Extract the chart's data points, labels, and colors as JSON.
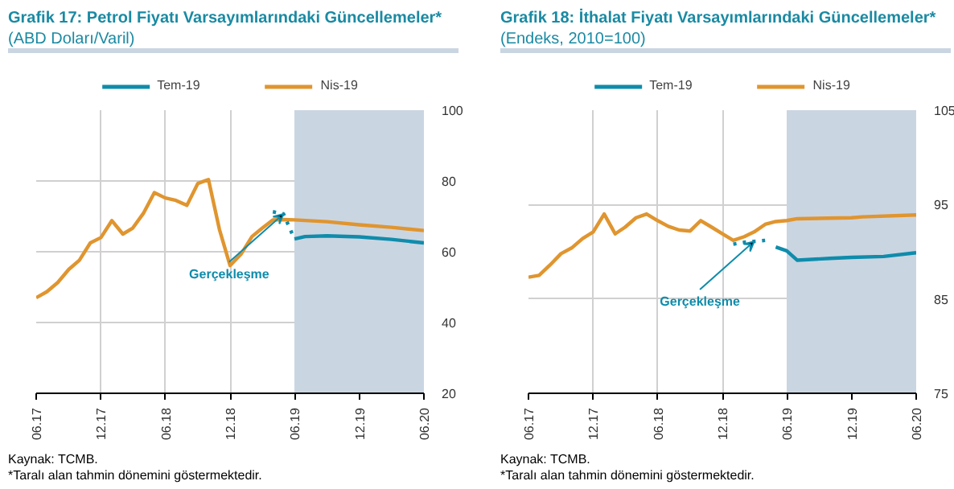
{
  "chart_data": [
    {
      "type": "line",
      "title": "Grafik 17: Petrol Fiyatı Varsayımlarındaki Güncellemeler*",
      "subtitle": "(ABD Doları/Varil)",
      "xlim": [
        "2017-06",
        "2020-06"
      ],
      "xticks": [
        {
          "value": "2017-06",
          "label": "06.17"
        },
        {
          "value": "2017-12",
          "label": "12.17"
        },
        {
          "value": "2018-06",
          "label": "06.18"
        },
        {
          "value": "2018-12",
          "label": "12.18"
        },
        {
          "value": "2019-06",
          "label": "06.19"
        },
        {
          "value": "2019-12",
          "label": "12.19"
        },
        {
          "value": "2020-06",
          "label": "06.20"
        }
      ],
      "ylim": [
        20,
        100
      ],
      "yticks": [
        20,
        40,
        60,
        80,
        100
      ],
      "grid": true,
      "legend": "top",
      "series": [
        {
          "name": "Tem-19",
          "color": "#0f8cab",
          "x": [
            "2019-06",
            "2019-07",
            "2019-09",
            "2019-12",
            "2020-03",
            "2020-06"
          ],
          "values": [
            63.6,
            64.3,
            64.5,
            64.2,
            63.5,
            62.5
          ]
        },
        {
          "name": "Nis-19",
          "color": "#e0952f",
          "x": [
            "2017-06",
            "2017-07",
            "2017-08",
            "2017-09",
            "2017-10",
            "2017-11",
            "2017-12",
            "2018-01",
            "2018-02",
            "2018-03",
            "2018-04",
            "2018-05",
            "2018-06",
            "2018-07",
            "2018-08",
            "2018-09",
            "2018-10",
            "2018-11",
            "2018-12",
            "2019-01",
            "2019-02",
            "2019-03",
            "2019-04",
            "2019-05",
            "2019-06",
            "2019-09",
            "2019-12",
            "2020-03",
            "2020-06"
          ],
          "values": [
            47,
            48.7,
            51.3,
            55,
            57.6,
            62.5,
            64,
            68.8,
            65,
            66.7,
            71,
            76.7,
            75.2,
            74.5,
            73.1,
            79.3,
            80.4,
            66.3,
            56.1,
            59.3,
            64.3,
            66.6,
            69,
            69.1,
            69,
            68.5,
            67.6,
            66.9,
            66
          ]
        },
        {
          "color": "#0f8cab",
          "line_style": "dotted",
          "x": [
            "2019-04",
            "2019-05",
            "2019-06"
          ],
          "values": [
            71.3,
            70.7,
            63.6
          ]
        }
      ],
      "bands": [
        {
          "axis": "x",
          "from": "2019-06",
          "to": "2020-06",
          "color": "#cad5e2"
        }
      ],
      "annotations": [
        {
          "text": "Gerçekleşme",
          "x": "2019-05",
          "y": 70.7
        },
        "Kaynak: TCMB.",
        "*Taralı alan tahmin dönemini göstermektedir."
      ]
    },
    {
      "type": "line",
      "title": "Grafik 18: İthalat Fiyatı Varsayımlarındaki Güncellemeler*",
      "subtitle": "(Endeks, 2010=100)",
      "xlim": [
        "2017-06",
        "2020-06"
      ],
      "xticks": [
        {
          "value": "2017-06",
          "label": "06.17"
        },
        {
          "value": "2017-12",
          "label": "12.17"
        },
        {
          "value": "2018-06",
          "label": "06.18"
        },
        {
          "value": "2018-12",
          "label": "12.18"
        },
        {
          "value": "2019-06",
          "label": "06.19"
        },
        {
          "value": "2019-12",
          "label": "12.19"
        },
        {
          "value": "2020-06",
          "label": "06.20"
        }
      ],
      "ylim": [
        75,
        105
      ],
      "yticks": [
        75,
        85,
        95,
        105
      ],
      "grid": true,
      "legend": "top",
      "series": [
        {
          "name": "Tem-19",
          "color": "#0f8cab",
          "x": [
            "2019-05",
            "2019-06",
            "2019-07",
            "2019-10",
            "2019-12",
            "2020-03",
            "2020-06"
          ],
          "values": [
            90.5,
            90.1,
            89.1,
            89.3,
            89.4,
            89.5,
            89.9
          ]
        },
        {
          "name": "Nis-19",
          "color": "#e0952f",
          "x": [
            "2017-06",
            "2017-07",
            "2017-08",
            "2017-09",
            "2017-10",
            "2017-11",
            "2017-12",
            "2018-01",
            "2018-02",
            "2018-03",
            "2018-04",
            "2018-05",
            "2018-06",
            "2018-07",
            "2018-08",
            "2018-09",
            "2018-10",
            "2018-11",
            "2018-12",
            "2019-01",
            "2019-02",
            "2019-03",
            "2019-04",
            "2019-05",
            "2019-06",
            "2019-07",
            "2019-12",
            "2020-01",
            "2020-06"
          ],
          "values": [
            87.3,
            87.5,
            88.6,
            89.8,
            90.4,
            91.4,
            92.1,
            94,
            91.9,
            92.6,
            93.6,
            94,
            93.3,
            92.7,
            92.3,
            92.2,
            93.3,
            92.6,
            91.9,
            91.2,
            91.6,
            92.1,
            92.9,
            93.2,
            93.3,
            93.5,
            93.6,
            93.7,
            93.9
          ]
        },
        {
          "color": "#0f8cab",
          "line_style": "dotted",
          "x": [
            "2019-01",
            "2019-02",
            "2019-03",
            "2019-04"
          ],
          "values": [
            90.8,
            91.0,
            91.1,
            91.2
          ]
        }
      ],
      "bands": [
        {
          "axis": "x",
          "from": "2019-06",
          "to": "2020-06",
          "color": "#cad5e2"
        }
      ],
      "annotations": [
        {
          "text": "Gerçekleşme",
          "x": "2019-03",
          "y": 91.1
        },
        "Kaynak: TCMB.",
        "*Taralı alan tahmin dönemini göstermektedir."
      ]
    }
  ]
}
